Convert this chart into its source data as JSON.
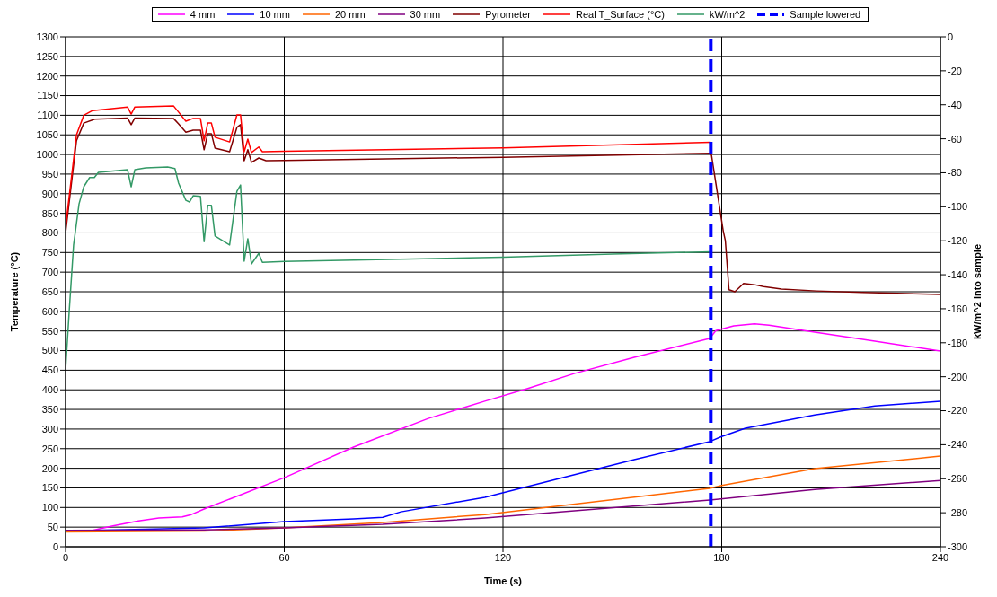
{
  "chart_data": {
    "type": "line",
    "xlabel": "Time (s)",
    "ylabel": "Temperature (°C)",
    "y2label": "kW/m^2 into sample",
    "xlim": [
      0,
      240
    ],
    "xticks": [
      0,
      60,
      120,
      180,
      240
    ],
    "ylim": [
      0,
      1300
    ],
    "yticks": [
      0,
      50,
      100,
      150,
      200,
      250,
      300,
      350,
      400,
      450,
      500,
      550,
      600,
      650,
      700,
      750,
      800,
      850,
      900,
      950,
      1000,
      1050,
      1100,
      1150,
      1200,
      1250,
      1300
    ],
    "y2lim": [
      -300,
      0
    ],
    "y2ticks": [
      -300,
      -280,
      -260,
      -240,
      -220,
      -200,
      -180,
      -160,
      -140,
      -120,
      -100,
      -80,
      -60,
      -40,
      -20,
      0
    ],
    "grid": true,
    "legend": "top",
    "marker": "none",
    "series": [
      {
        "name": "4 mm",
        "color": "#ff00ff",
        "x": [
          0,
          7.4,
          13,
          20,
          25.6,
          32,
          34.5,
          38,
          60,
          79,
          99.5,
          115,
          126.6,
          139.7,
          156,
          176.7,
          178.4,
          183.3,
          189,
          193,
          205.5,
          222,
          240
        ],
        "values": [
          40,
          42,
          53,
          66,
          73,
          76,
          82,
          96,
          176,
          254,
          327,
          371,
          403,
          442,
          483,
          531,
          551,
          563,
          568,
          565,
          547,
          524,
          499
        ]
      },
      {
        "name": "10 mm",
        "color": "#0000ff",
        "x": [
          0,
          38,
          60,
          79,
          87,
          92,
          115,
          135.5,
          156,
          176.7,
          180,
          186.5,
          205.5,
          222,
          240
        ],
        "values": [
          40,
          48,
          64,
          71,
          75,
          89,
          126,
          174,
          222,
          268,
          281,
          302,
          336,
          359,
          371
        ]
      },
      {
        "name": "20 mm",
        "color": "#ff6600",
        "x": [
          0,
          38,
          60,
          87,
          115,
          176.7,
          180,
          205.5,
          240
        ],
        "values": [
          38,
          40,
          48,
          62,
          82,
          149,
          156,
          199,
          231
        ]
      },
      {
        "name": "30 mm",
        "color": "#800080",
        "x": [
          0,
          38,
          60,
          87,
          115,
          176.7,
          205.5,
          240
        ],
        "values": [
          42,
          43,
          48,
          57,
          73,
          119,
          146,
          169
        ]
      },
      {
        "name": "Pyrometer",
        "color": "#800000",
        "x": [
          0,
          3,
          5,
          8,
          17,
          18,
          19,
          29.6,
          31,
          33,
          35,
          37,
          38,
          39,
          40,
          41,
          45,
          47,
          48,
          49,
          50,
          51,
          53,
          55,
          60,
          120,
          177,
          177.2,
          180.4,
          181,
          182,
          183.6,
          186,
          189,
          191.5,
          196.4,
          206,
          218.6,
          240
        ],
        "values": [
          800,
          1035,
          1080,
          1090,
          1093,
          1076,
          1093,
          1092,
          1078,
          1057,
          1062,
          1062,
          1012,
          1053,
          1053,
          1016,
          1007,
          1069,
          1076,
          984,
          1012,
          980,
          991,
          984,
          985,
          993,
          1003,
          998,
          806,
          780,
          655,
          650,
          671,
          668,
          663,
          657,
          652,
          648,
          643
        ]
      },
      {
        "name": "Real T_Surface (°C)",
        "color": "#ff0000",
        "x": [
          0,
          3,
          5,
          7.4,
          17,
          18,
          19,
          29.6,
          31,
          33,
          35,
          37,
          38,
          39,
          40,
          41,
          45,
          47,
          48,
          49,
          50,
          51,
          53,
          54,
          60,
          120,
          177
        ],
        "values": [
          815,
          1050,
          1100,
          1112,
          1121,
          1103,
          1121,
          1124,
          1108,
          1085,
          1092,
          1092,
          1035,
          1080,
          1080,
          1044,
          1032,
          1101,
          1101,
          1007,
          1039,
          1005,
          1019,
          1007,
          1008,
          1017,
          1031
        ]
      },
      {
        "name": "kW/m^2",
        "color": "#339966",
        "axis": "y2",
        "x": [
          0,
          1,
          2.2,
          3.7,
          5,
          6.6,
          7.9,
          9,
          17,
          18,
          19,
          22,
          28,
          30,
          31,
          33,
          34,
          35,
          37,
          38,
          39,
          40,
          41,
          45,
          47,
          48,
          49,
          50,
          51,
          53,
          54,
          60,
          120,
          150,
          177
        ],
        "values": [
          -196,
          -161.5,
          -122.5,
          -98.3,
          -88.2,
          -82.8,
          -82.8,
          -79.8,
          -78.2,
          -88.2,
          -78.2,
          -77.1,
          -76.6,
          -77.5,
          -86.1,
          -96.2,
          -97.2,
          -93.5,
          -93.9,
          -120.5,
          -99.2,
          -99.2,
          -117.2,
          -122.5,
          -90.9,
          -87.2,
          -132,
          -118.8,
          -133.6,
          -127.4,
          -132.7,
          -132.2,
          -129.7,
          -127.8,
          -126.5
        ]
      }
    ],
    "ref_lines": [
      {
        "axis": "x",
        "value": 177,
        "label": "Sample lowered",
        "color": "#0000ff",
        "line_style": "dashed"
      }
    ]
  }
}
